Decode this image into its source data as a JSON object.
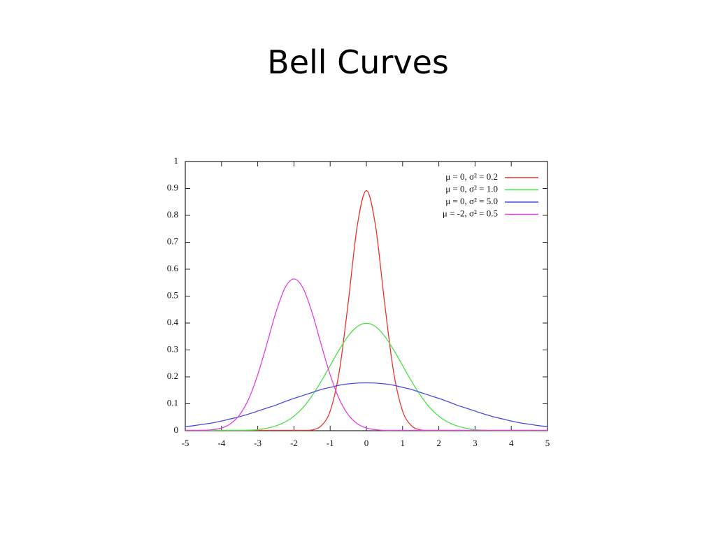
{
  "chart_data": {
    "type": "line",
    "title": "Bell Curves",
    "x": [
      -5,
      -4.75,
      -4.5,
      -4.25,
      -4,
      -3.75,
      -3.5,
      -3.25,
      -3,
      -2.75,
      -2.5,
      -2.25,
      -2,
      -1.75,
      -1.5,
      -1.25,
      -1,
      -0.75,
      -0.5,
      -0.25,
      0,
      0.25,
      0.5,
      0.75,
      1,
      1.25,
      1.5,
      1.75,
      2,
      2.25,
      2.5,
      2.75,
      3,
      3.25,
      3.5,
      3.75,
      4,
      4.25,
      4.5,
      4.75,
      5
    ],
    "series": [
      {
        "name": "μ =  0, σ² = 0.2",
        "color": "#e8342c",
        "values": [
          0,
          0,
          0,
          0,
          0,
          0,
          0,
          0,
          0,
          0,
          0,
          0,
          0,
          0,
          0.003,
          0.018,
          0.073,
          0.219,
          0.478,
          0.763,
          0.892,
          0.763,
          0.478,
          0.219,
          0.073,
          0.018,
          0.003,
          0,
          0,
          0,
          0,
          0,
          0,
          0,
          0,
          0,
          0,
          0,
          0,
          0,
          0
        ]
      },
      {
        "name": "μ =  0, σ² = 1.0",
        "color": "#46e046",
        "values": [
          0,
          0,
          0,
          0,
          0,
          0,
          0.001,
          0.002,
          0.004,
          0.009,
          0.018,
          0.032,
          0.054,
          0.086,
          0.13,
          0.183,
          0.242,
          0.301,
          0.352,
          0.387,
          0.399,
          0.387,
          0.352,
          0.301,
          0.242,
          0.183,
          0.13,
          0.086,
          0.054,
          0.032,
          0.018,
          0.009,
          0.004,
          0.002,
          0.001,
          0,
          0,
          0,
          0,
          0,
          0
        ]
      },
      {
        "name": "μ =  0, σ² = 5.0",
        "color": "#4a4ae0",
        "values": [
          0.015,
          0.019,
          0.024,
          0.029,
          0.036,
          0.044,
          0.052,
          0.062,
          0.073,
          0.084,
          0.095,
          0.108,
          0.12,
          0.131,
          0.142,
          0.153,
          0.161,
          0.169,
          0.174,
          0.177,
          0.178,
          0.177,
          0.174,
          0.169,
          0.161,
          0.153,
          0.142,
          0.131,
          0.12,
          0.108,
          0.095,
          0.084,
          0.073,
          0.062,
          0.052,
          0.044,
          0.036,
          0.029,
          0.024,
          0.019,
          0.015
        ]
      },
      {
        "name": "μ = -2, σ² = 0.5",
        "color": "#e040e0",
        "values": [
          0,
          0,
          0.001,
          0.004,
          0.01,
          0.026,
          0.059,
          0.118,
          0.208,
          0.321,
          0.439,
          0.53,
          0.564,
          0.53,
          0.439,
          0.321,
          0.208,
          0.118,
          0.059,
          0.026,
          0.01,
          0.004,
          0.001,
          0,
          0,
          0,
          0,
          0,
          0,
          0,
          0,
          0,
          0,
          0,
          0,
          0,
          0,
          0,
          0,
          0,
          0
        ]
      }
    ],
    "xlim": [
      -5,
      5
    ],
    "ylim": [
      0,
      1
    ],
    "xticks": [
      -5,
      -4,
      -3,
      -2,
      -1,
      0,
      1,
      2,
      3,
      4,
      5
    ],
    "yticks": [
      0,
      0.1,
      0.2,
      0.3,
      0.4,
      0.5,
      0.6,
      0.7,
      0.8,
      0.9,
      1
    ],
    "legend": "upper right"
  }
}
